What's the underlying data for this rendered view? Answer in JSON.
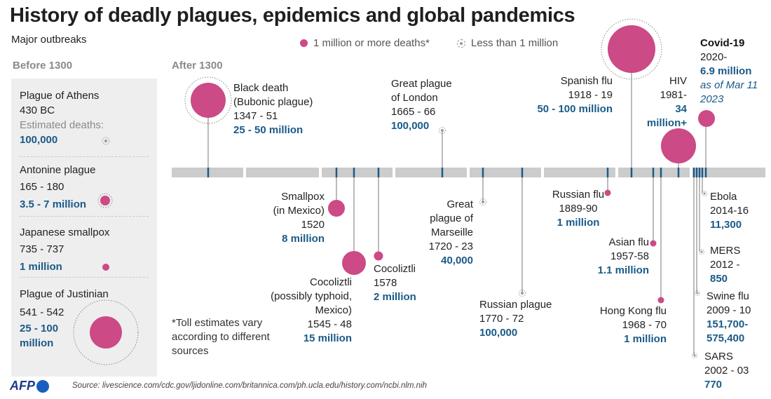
{
  "header": {
    "title": "History of deadly plagues, epidemics and global pandemics",
    "subtitle": "Major outbreaks"
  },
  "legend": {
    "big_label": "1 million or more deaths*",
    "small_label": "Less than 1 million"
  },
  "sections": {
    "before": "Before 1300",
    "after": "After 1300"
  },
  "before_1300": [
    {
      "name": "Plague of Athens",
      "years": "430 BC",
      "extra": "Estimated deaths:",
      "deaths": "100,000",
      "deaths_millions": 0.1
    },
    {
      "name": "Antonine plague",
      "years": "165 - 180",
      "deaths": "3.5 - 7 million",
      "deaths_millions": 5.25
    },
    {
      "name": "Japanese smallpox",
      "years": "735 - 737",
      "deaths": "1 million",
      "deaths_millions": 1
    },
    {
      "name": "Plague of Justinian",
      "years": "541 - 542",
      "deaths": "25 - 100",
      "deaths_line2": "million",
      "deaths_millions": 62.5
    }
  ],
  "after_1300": {
    "black_death": {
      "name1": "Black death",
      "name2": "(Bubonic plague)",
      "years": "1347 - 51",
      "deaths": "25 - 50 million",
      "deaths_millions": 37.5
    },
    "smallpox_mexico": {
      "name1": "Smallpox",
      "name2": "(in Mexico)",
      "years": "1520",
      "deaths": "8 million",
      "deaths_millions": 8
    },
    "cocoliztli_1545": {
      "name1": "Cocoliztli",
      "name2": "(possibly typhoid,",
      "name3": "Mexico)",
      "years": "1545 - 48",
      "deaths": "15 million",
      "deaths_millions": 15
    },
    "cocoliztli_1578": {
      "name1": "Cocoliztli",
      "years": "1578",
      "deaths": "2 million",
      "deaths_millions": 2
    },
    "great_plague_london": {
      "name1": "Great plague",
      "name2": "of London",
      "years": "1665 - 66",
      "deaths": "100,000",
      "deaths_millions": 0.1
    },
    "great_plague_marseille": {
      "name1": "Great",
      "name2": "plague of",
      "name3": "Marseille",
      "years": "1720 - 23",
      "deaths": "40,000",
      "deaths_millions": 0.04
    },
    "russian_plague": {
      "name1": "Russian plague",
      "years": "1770 - 72",
      "deaths": "100,000",
      "deaths_millions": 0.1
    },
    "russian_flu": {
      "name1": "Russian flu",
      "years": "1889-90",
      "deaths": "1 million",
      "deaths_millions": 1
    },
    "spanish_flu": {
      "name1": "Spanish flu",
      "years": "1918 - 19",
      "deaths": "50 - 100 million",
      "deaths_millions": 75
    },
    "asian_flu": {
      "name1": "Asian flu",
      "years": "1957-58",
      "deaths": "1.1 million",
      "deaths_millions": 1.1
    },
    "hong_kong_flu": {
      "name1": "Hong Kong flu",
      "years": "1968 - 70",
      "deaths": "1 million",
      "deaths_millions": 1
    },
    "hiv": {
      "name1": "HIV",
      "years": "1981-",
      "deaths": "34",
      "deaths2": "million+",
      "deaths_millions": 34
    },
    "covid": {
      "name1": "Covid-19",
      "years": "2020-",
      "deaths": "6.9 million",
      "note1": "as of Mar 11",
      "note2": "2023",
      "deaths_millions": 6.9
    },
    "ebola": {
      "name1": "Ebola",
      "years": "2014-16",
      "deaths": "11,300",
      "deaths_millions": 0.0113
    },
    "mers": {
      "name1": "MERS",
      "years": "2012 -",
      "deaths": "850",
      "deaths_millions": 0.00085
    },
    "swine_flu": {
      "name1": "Swine flu",
      "years": "2009 - 10",
      "deaths": "151,700-",
      "deaths2": "575,400",
      "deaths_millions": 0.36
    },
    "sars": {
      "name1": "SARS",
      "years": "2002 - 03",
      "deaths": "770",
      "deaths_millions": 0.00077
    }
  },
  "footnote": {
    "line1": "*Toll estimates vary",
    "line2": "according to different",
    "line3": "sources"
  },
  "source": "Source: livescience.com/cdc.gov/ljidonline.com/britannica.com/ph.ucla.edu/history.com/ncbi.nlm.nih",
  "logo_text": "AFP",
  "colors": {
    "big": "#cc4a86",
    "small": "#9a9a9a",
    "value": "#1a5a88",
    "timeline": "#cccccc",
    "tick": "#1a5a88"
  }
}
